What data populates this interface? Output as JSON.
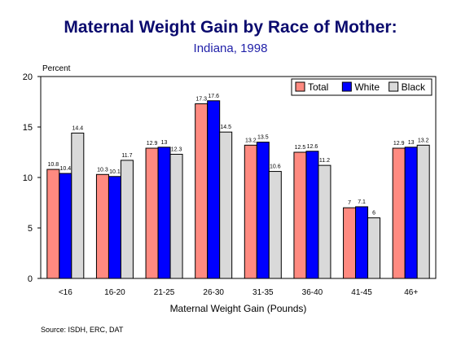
{
  "title": "Maternal Weight Gain by Race of Mother:",
  "subtitle": "Indiana, 1998",
  "source": "Source:  ISDH, ERC, DAT",
  "colors": {
    "total": "#ff8a80",
    "white": "#0000ff",
    "black": "#d9d9d9",
    "title": "#0b0b6e",
    "subtitle": "#1f1fa8"
  },
  "chart_data": {
    "type": "bar",
    "title": "Maternal Weight Gain by Race of Mother:",
    "subtitle": "Indiana, 1998",
    "xlabel": "Maternal Weight Gain (Pounds)",
    "ylabel": "Percent",
    "ylim": [
      0,
      20
    ],
    "yticks": [
      0,
      5,
      10,
      15,
      20
    ],
    "grid": false,
    "legend_position": "top-right",
    "categories": [
      "<16",
      "16-20",
      "21-25",
      "26-30",
      "31-35",
      "36-40",
      "41-45",
      "46+"
    ],
    "series": [
      {
        "name": "Total",
        "values": [
          10.8,
          10.3,
          12.9,
          17.3,
          13.2,
          12.5,
          7,
          12.9
        ]
      },
      {
        "name": "White",
        "values": [
          10.4,
          10.1,
          13,
          17.6,
          13.5,
          12.6,
          7.1,
          13
        ]
      },
      {
        "name": "Black",
        "values": [
          14.4,
          11.7,
          12.3,
          14.5,
          10.6,
          11.2,
          6,
          13.2
        ]
      }
    ]
  }
}
